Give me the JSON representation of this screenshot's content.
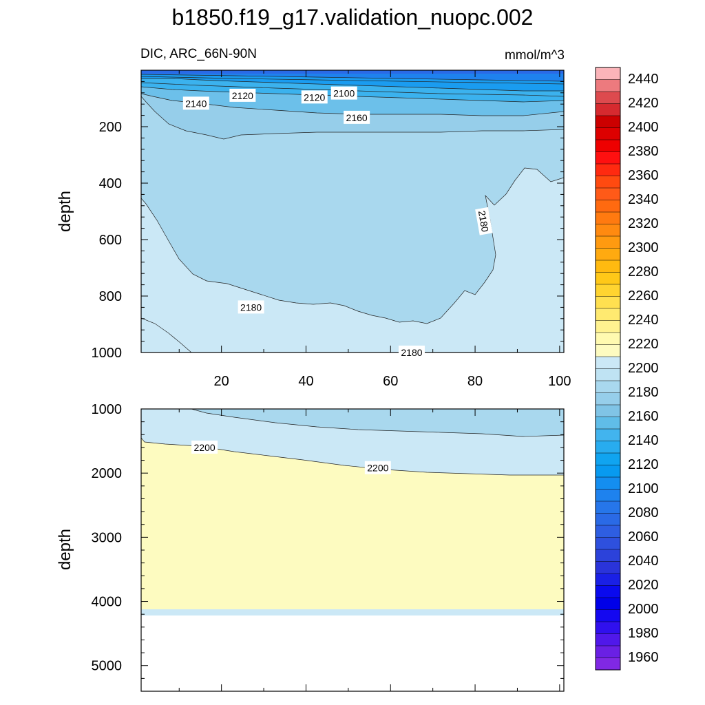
{
  "figure": {
    "title": "b1850.f19_g17.validation_nuopc.002",
    "left_label": "DIC, ARC_66N-90N",
    "right_label": "mmol/m^3"
  },
  "chart_data": [
    {
      "type": "contour",
      "panel": "upper",
      "ylabel": "depth",
      "xlim": [
        1,
        101
      ],
      "ylim": [
        1000,
        0
      ],
      "x_ticks": [
        "20",
        "40",
        "60",
        "80",
        "100"
      ],
      "y_ticks": [
        "200",
        "400",
        "600",
        "800",
        "1000"
      ],
      "contour_labels": [
        {
          "text": "2100",
          "x": 49,
          "y": 82
        },
        {
          "text": "2120",
          "x": 25,
          "y": 90
        },
        {
          "text": "2120",
          "x": 42,
          "y": 96
        },
        {
          "text": "2140",
          "x": 14,
          "y": 118
        },
        {
          "text": "2160",
          "x": 52,
          "y": 168
        },
        {
          "text": "2180",
          "x": 82,
          "y": 535
        },
        {
          "text": "2180",
          "x": 27,
          "y": 840
        },
        {
          "text": "2180",
          "x": 65,
          "y": 1000
        }
      ]
    },
    {
      "type": "contour",
      "panel": "lower",
      "ylabel": "depth",
      "xlim": [
        1,
        101
      ],
      "ylim": [
        5400,
        1000
      ],
      "y_ticks": [
        "1000",
        "2000",
        "3000",
        "4000",
        "5000"
      ],
      "ocean_bottom_depth": 4120,
      "contour_labels": [
        {
          "text": "2200",
          "x": 16,
          "y": 1600
        },
        {
          "text": "2200",
          "x": 57,
          "y": 1920
        }
      ]
    }
  ],
  "colorbar": {
    "labels": [
      "2440",
      "2420",
      "2400",
      "2380",
      "2360",
      "2340",
      "2320",
      "2300",
      "2280",
      "2260",
      "2240",
      "2220",
      "2200",
      "2180",
      "2160",
      "2140",
      "2120",
      "2100",
      "2080",
      "2060",
      "2040",
      "2020",
      "2000",
      "1980",
      "1960"
    ],
    "colors": [
      "#fbb4b9",
      "#ed7a7e",
      "#dd4a4e",
      "#d62a2f",
      "#cc0000",
      "#dd0000",
      "#ee0000",
      "#ff1010",
      "#ff2a10",
      "#ff4a10",
      "#ff5a18",
      "#ff6a10",
      "#ff7a10",
      "#ff8a10",
      "#ff9a10",
      "#ffaa10",
      "#ffba10",
      "#ffc818",
      "#ffd430",
      "#ffe050",
      "#ffea70",
      "#fff290",
      "#fffab0",
      "#fdfbc0",
      "#cbe8f6",
      "#bfe3f3",
      "#a9d8ee",
      "#96ceea",
      "#80c4e6",
      "#60bde8",
      "#42b4ee",
      "#28acef",
      "#10a4f0",
      "#089af0",
      "#148ef0",
      "#1e82ee",
      "#2676ea",
      "#2a6ae6",
      "#2e5ee2",
      "#2e50de",
      "#2c42da",
      "#2a34da",
      "#1a20e6",
      "#0a0aee",
      "#0000e8",
      "#1408f0",
      "#3010ee",
      "#5018ea",
      "#6a20e4",
      "#8028e4"
    ]
  }
}
